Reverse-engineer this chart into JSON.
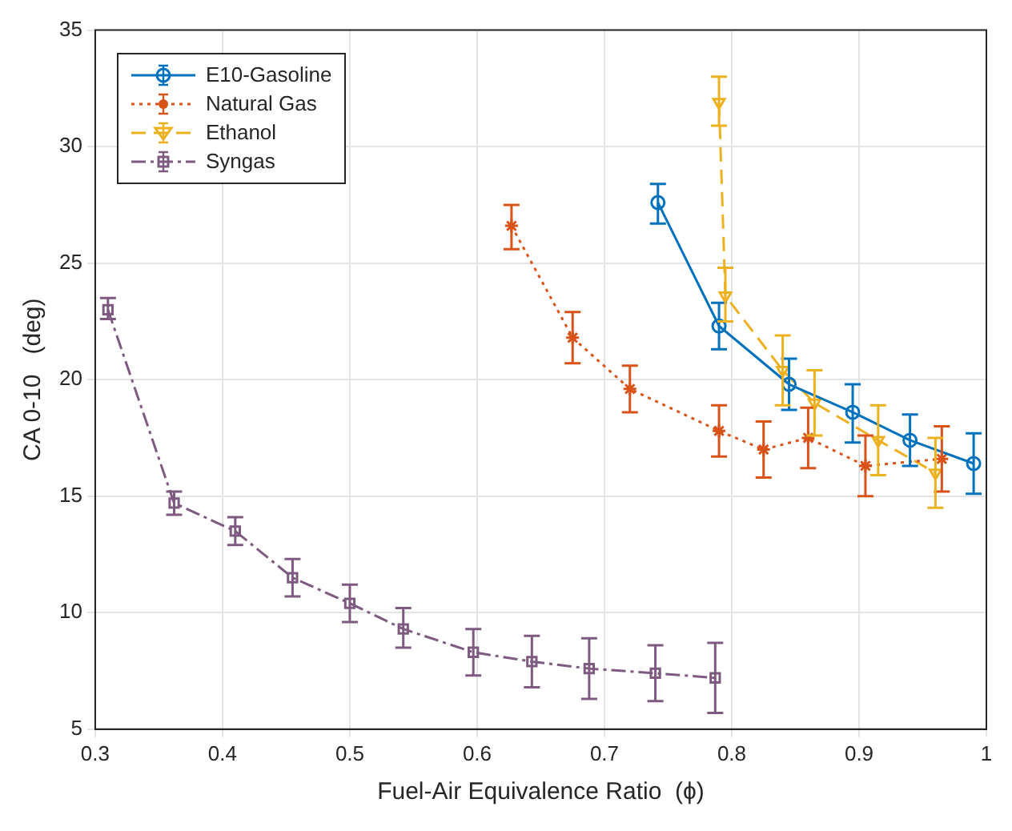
{
  "chart_data": {
    "type": "line",
    "xlabel": "Fuel-Air Equivalence Ratio  (ϕ)",
    "ylabel": "CA 0-10   (deg)",
    "xlim": [
      0.3,
      1
    ],
    "xticks": [
      0.3,
      0.4,
      0.5,
      0.6,
      0.7,
      0.8,
      0.9,
      1
    ],
    "ylim": [
      5,
      35
    ],
    "yticks": [
      5,
      10,
      15,
      20,
      25,
      30,
      35
    ],
    "grid": true,
    "legend": "top left",
    "series": [
      {
        "name": "E10-Gasoline",
        "color": "#0072bd",
        "marker": "circle",
        "line_style": "solid",
        "x": [
          0.742,
          0.79,
          0.845,
          0.895,
          0.94,
          0.99
        ],
        "values": [
          27.6,
          22.3,
          19.8,
          18.6,
          17.4,
          16.4
        ],
        "errors": [
          [
            26.7,
            28.4
          ],
          [
            21.3,
            23.3
          ],
          [
            18.7,
            20.9
          ],
          [
            17.3,
            19.8
          ],
          [
            16.3,
            18.5
          ],
          [
            15.1,
            17.7
          ]
        ]
      },
      {
        "name": "Natural Gas",
        "color": "#d95319",
        "marker": "cross",
        "line_style": "dotted",
        "x": [
          0.627,
          0.675,
          0.72,
          0.79,
          0.825,
          0.86,
          0.905,
          0.965
        ],
        "values": [
          26.6,
          21.8,
          19.6,
          17.8,
          17.0,
          17.5,
          16.3,
          16.6
        ],
        "errors": [
          [
            25.6,
            27.5
          ],
          [
            20.7,
            22.9
          ],
          [
            18.6,
            20.6
          ],
          [
            16.7,
            18.9
          ],
          [
            15.8,
            18.2
          ],
          [
            16.2,
            18.8
          ],
          [
            15.0,
            17.6
          ],
          [
            15.2,
            18.0
          ]
        ]
      },
      {
        "name": "Ethanol",
        "color": "#edb120",
        "marker": "triangle",
        "line_style": "dashed",
        "x": [
          0.79,
          0.795,
          0.84,
          0.865,
          0.915,
          0.96
        ],
        "values": [
          31.9,
          23.6,
          20.4,
          19.0,
          17.4,
          16.0
        ],
        "errors": [
          [
            30.9,
            33.0
          ],
          [
            22.5,
            24.8
          ],
          [
            18.9,
            21.9
          ],
          [
            17.6,
            20.4
          ],
          [
            15.9,
            18.9
          ],
          [
            14.5,
            17.5
          ]
        ]
      },
      {
        "name": "Syngas",
        "color": "#7e5a80",
        "marker": "square",
        "line_style": "dashdot",
        "x": [
          0.31,
          0.362,
          0.41,
          0.455,
          0.5,
          0.542,
          0.597,
          0.643,
          0.688,
          0.74,
          0.787
        ],
        "values": [
          23.0,
          14.7,
          13.5,
          11.5,
          10.4,
          9.3,
          8.3,
          7.9,
          7.6,
          7.4,
          7.2
        ],
        "errors": [
          [
            22.6,
            23.5
          ],
          [
            14.2,
            15.2
          ],
          [
            12.9,
            14.1
          ],
          [
            10.7,
            12.3
          ],
          [
            9.6,
            11.2
          ],
          [
            8.5,
            10.2
          ],
          [
            7.3,
            9.3
          ],
          [
            6.8,
            9.0
          ],
          [
            6.3,
            8.9
          ],
          [
            6.2,
            8.6
          ],
          [
            5.7,
            8.7
          ]
        ]
      }
    ]
  }
}
